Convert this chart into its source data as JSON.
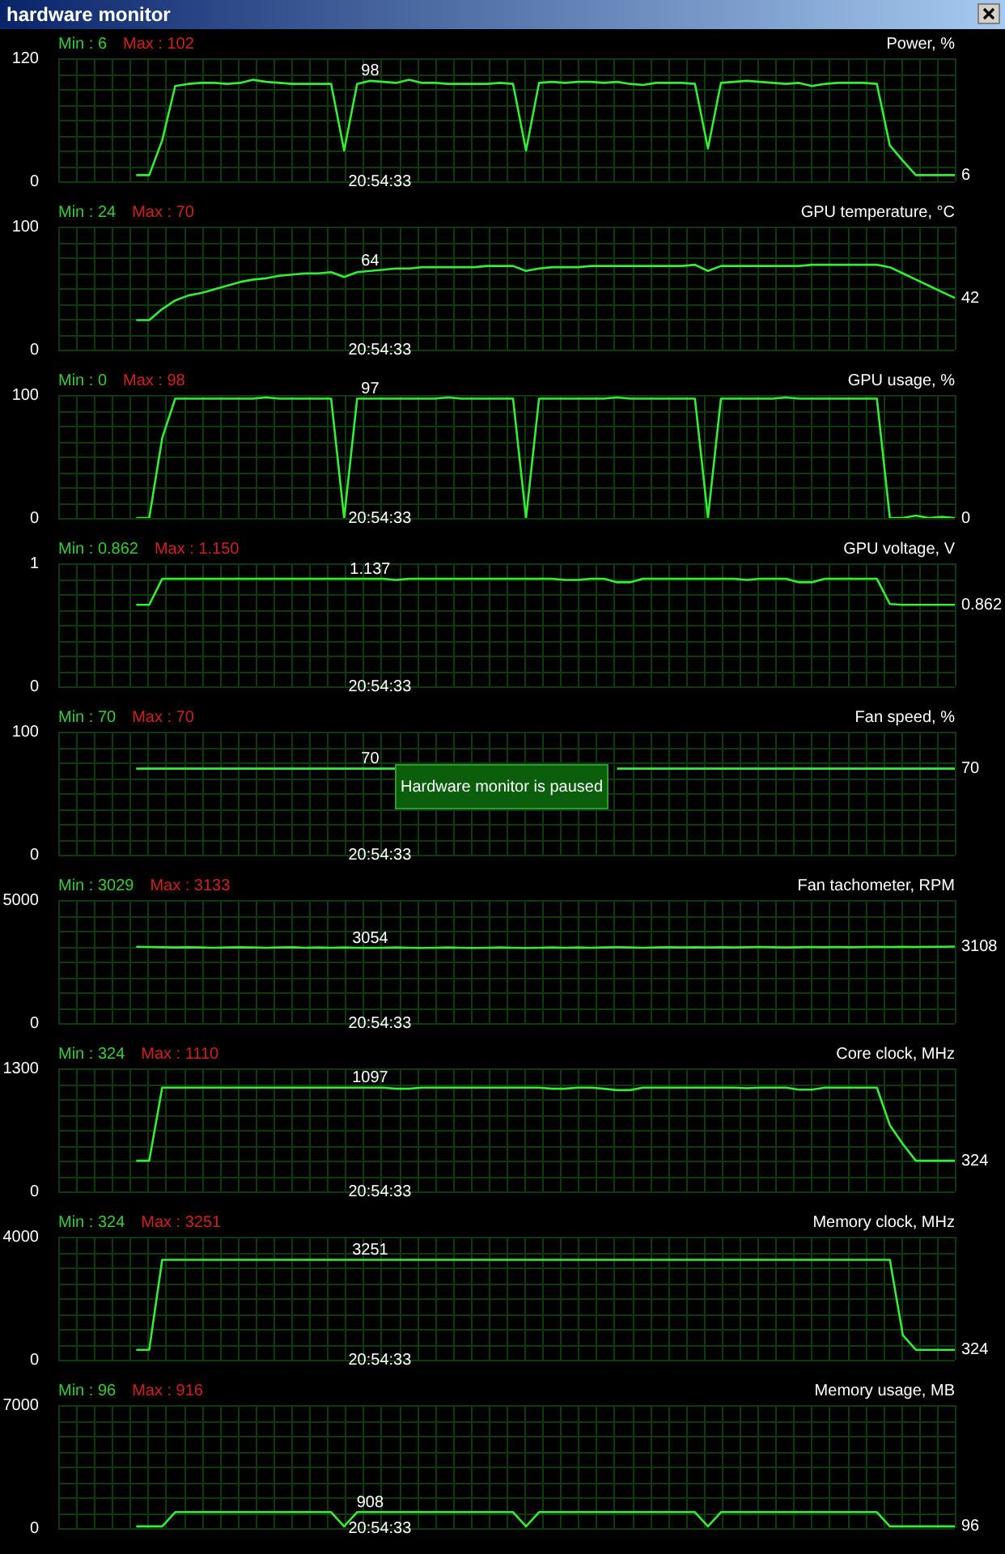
{
  "chart_data": [
    {
      "type": "line",
      "title": "Power, %",
      "categories": [
        null,
        null,
        null,
        null,
        null,
        null,
        null,
        null,
        null,
        null,
        null,
        null,
        null,
        null,
        null,
        null,
        null,
        null,
        null,
        null,
        null,
        null,
        null,
        null,
        null,
        null,
        null,
        null,
        null,
        null,
        null,
        null,
        null,
        null,
        null,
        null,
        null,
        null,
        null,
        null,
        null,
        null,
        null,
        null,
        null,
        null,
        null,
        null,
        null,
        null,
        null,
        null,
        null,
        null,
        null,
        null,
        null,
        null,
        null,
        null,
        null,
        null,
        null,
        null,
        null,
        null,
        null,
        null,
        null,
        null
      ],
      "color": "#33ee33",
      "ylim": [
        0,
        120
      ],
      "yticks": [
        0,
        120
      ],
      "grid": true,
      "tick_labels": "y",
      "values": [
        null,
        null,
        null,
        null,
        null,
        null,
        6,
        6,
        40,
        93,
        95,
        96,
        96,
        95,
        96,
        99,
        97,
        96,
        95,
        95,
        95,
        95,
        30,
        95,
        98,
        97,
        96,
        99,
        96,
        96,
        95,
        95,
        95,
        95,
        96,
        95,
        30,
        96,
        97,
        96,
        97,
        97,
        96,
        97,
        95,
        94,
        96,
        96,
        96,
        95,
        32,
        96,
        97,
        98,
        97,
        96,
        95,
        96,
        93,
        95,
        96,
        96,
        96,
        95,
        35,
        20,
        6,
        6,
        6,
        6
      ],
      "annotations": [
        "Min : 6",
        "Max : 102",
        "20:54:33",
        "6",
        "hardware monitor",
        {
          "text": "98",
          "y": 98
        }
      ]
    },
    {
      "type": "line",
      "title": "GPU temperature, °C",
      "categories": [
        null,
        null,
        null,
        null,
        null,
        null,
        null,
        null,
        null,
        null,
        null,
        null,
        null,
        null,
        null,
        null,
        null,
        null,
        null,
        null,
        null,
        null,
        null,
        null,
        null,
        null,
        null,
        null,
        null,
        null,
        null,
        null,
        null,
        null,
        null,
        null,
        null,
        null,
        null,
        null,
        null,
        null,
        null,
        null,
        null,
        null,
        null,
        null,
        null,
        null,
        null,
        null,
        null,
        null,
        null,
        null,
        null,
        null,
        null,
        null,
        null,
        null,
        null,
        null,
        null,
        null,
        null,
        null,
        null,
        null
      ],
      "color": "#33ee33",
      "ylim": [
        0,
        100
      ],
      "yticks": [
        0,
        100
      ],
      "grid": true,
      "tick_labels": "y",
      "values": [
        null,
        null,
        null,
        null,
        null,
        null,
        24,
        24,
        33,
        40,
        44,
        46,
        49,
        52,
        55,
        57,
        58,
        60,
        61,
        62,
        62,
        63,
        59,
        63,
        64,
        65,
        66,
        66,
        67,
        67,
        67,
        67,
        67,
        68,
        68,
        68,
        64,
        66,
        67,
        67,
        67,
        68,
        68,
        68,
        68,
        68,
        68,
        68,
        68,
        69,
        64,
        68,
        68,
        68,
        68,
        68,
        68,
        68,
        69,
        69,
        69,
        69,
        69,
        69,
        67,
        62,
        57,
        52,
        47,
        42
      ],
      "annotations": [
        "Min : 24",
        "Max : 70",
        "20:54:33",
        "42",
        {
          "text": "64",
          "y": 64
        }
      ]
    },
    {
      "type": "line",
      "title": "GPU usage, %",
      "categories": [
        null,
        null,
        null,
        null,
        null,
        null,
        null,
        null,
        null,
        null,
        null,
        null,
        null,
        null,
        null,
        null,
        null,
        null,
        null,
        null,
        null,
        null,
        null,
        null,
        null,
        null,
        null,
        null,
        null,
        null,
        null,
        null,
        null,
        null,
        null,
        null,
        null,
        null,
        null,
        null,
        null,
        null,
        null,
        null,
        null,
        null,
        null,
        null,
        null,
        null,
        null,
        null,
        null,
        null,
        null,
        null,
        null,
        null,
        null,
        null,
        null,
        null,
        null,
        null,
        null,
        null,
        null,
        null,
        null,
        null
      ],
      "color": "#33ee33",
      "ylim": [
        0,
        100
      ],
      "yticks": [
        0,
        100
      ],
      "grid": true,
      "tick_labels": "y",
      "values": [
        null,
        null,
        null,
        null,
        null,
        null,
        0,
        0,
        65,
        97,
        97,
        97,
        97,
        97,
        97,
        97,
        98,
        97,
        97,
        97,
        97,
        97,
        0,
        97,
        97,
        97,
        97,
        97,
        97,
        97,
        98,
        97,
        97,
        97,
        97,
        97,
        0,
        97,
        97,
        97,
        97,
        97,
        97,
        98,
        97,
        97,
        97,
        97,
        97,
        97,
        0,
        97,
        97,
        97,
        97,
        97,
        98,
        97,
        97,
        97,
        97,
        97,
        97,
        97,
        0,
        0,
        2,
        0,
        1,
        0
      ],
      "annotations": [
        "Min : 0",
        "Max : 98",
        "20:54:33",
        "0",
        {
          "text": "97",
          "y": 97
        }
      ]
    },
    {
      "type": "line",
      "title": "GPU voltage, V",
      "categories": [
        null,
        null,
        null,
        null,
        null,
        null,
        null,
        null,
        null,
        null,
        null,
        null,
        null,
        null,
        null,
        null,
        null,
        null,
        null,
        null,
        null,
        null,
        null,
        null,
        null,
        null,
        null,
        null,
        null,
        null,
        null,
        null,
        null,
        null,
        null,
        null,
        null,
        null,
        null,
        null,
        null,
        null,
        null,
        null,
        null,
        null,
        null,
        null,
        null,
        null,
        null,
        null,
        null,
        null,
        null,
        null,
        null,
        null,
        null,
        null,
        null,
        null,
        null,
        null,
        null,
        null,
        null,
        null,
        null,
        null
      ],
      "color": "#33ee33",
      "ylim": [
        0,
        1.3
      ],
      "yticks": [
        0,
        {
          "value": 1.3,
          "label": "1"
        }
      ],
      "grid": true,
      "tick_labels": "y",
      "values": [
        null,
        null,
        null,
        null,
        null,
        null,
        0.862,
        0.862,
        1.137,
        1.137,
        1.137,
        1.137,
        1.137,
        1.137,
        1.137,
        1.137,
        1.137,
        1.137,
        1.137,
        1.137,
        1.137,
        1.137,
        1.137,
        1.137,
        1.137,
        1.137,
        1.125,
        1.137,
        1.137,
        1.137,
        1.137,
        1.137,
        1.137,
        1.137,
        1.137,
        1.137,
        1.137,
        1.137,
        1.137,
        1.125,
        1.125,
        1.137,
        1.137,
        1.1,
        1.1,
        1.137,
        1.137,
        1.137,
        1.137,
        1.137,
        1.137,
        1.137,
        1.137,
        1.125,
        1.137,
        1.137,
        1.137,
        1.1,
        1.1,
        1.137,
        1.137,
        1.137,
        1.137,
        1.137,
        0.87,
        0.862,
        0.862,
        0.862,
        0.862,
        0.862
      ],
      "annotations": [
        "Min : 0.862",
        "Max : 1.150",
        "20:54:33",
        "0.862",
        {
          "text": "1.137",
          "y": 1.137
        }
      ]
    },
    {
      "type": "line",
      "title": "Fan speed, %",
      "categories": [
        null,
        null,
        null,
        null,
        null,
        null,
        null,
        null,
        null,
        null,
        null,
        null,
        null,
        null,
        null,
        null,
        null,
        null,
        null,
        null,
        null,
        null,
        null,
        null,
        null,
        null,
        null,
        null,
        null,
        null,
        null,
        null,
        null,
        null,
        null,
        null,
        null,
        null,
        null,
        null,
        null,
        null,
        null,
        null,
        null,
        null,
        null,
        null,
        null,
        null,
        null,
        null,
        null,
        null,
        null,
        null,
        null,
        null,
        null,
        null,
        null,
        null,
        null,
        null,
        null,
        null,
        null,
        null,
        null,
        null
      ],
      "color": "#33ee33",
      "ylim": [
        0,
        100
      ],
      "yticks": [
        0,
        100
      ],
      "grid": true,
      "tick_labels": "y",
      "values": [
        null,
        null,
        null,
        null,
        null,
        null,
        70,
        70,
        70,
        70,
        70,
        70,
        70,
        70,
        70,
        70,
        70,
        70,
        70,
        70,
        70,
        70,
        70,
        70,
        70,
        70,
        70,
        null,
        null,
        null,
        null,
        null,
        null,
        null,
        null,
        null,
        null,
        null,
        null,
        null,
        null,
        null,
        null,
        70,
        70,
        70,
        70,
        70,
        70,
        70,
        70,
        70,
        70,
        70,
        70,
        70,
        70,
        70,
        70,
        70,
        70,
        70,
        70,
        70,
        70,
        70,
        70,
        70,
        70,
        70
      ],
      "annotations": [
        "Min : 70",
        "Max : 70",
        "20:54:33",
        "70",
        "Hardware monitor is paused",
        "70"
      ]
    },
    {
      "type": "line",
      "title": "Fan tachometer, RPM",
      "categories": [
        null,
        null,
        null,
        null,
        null,
        null,
        null,
        null,
        null,
        null,
        null,
        null,
        null,
        null,
        null,
        null,
        null,
        null,
        null,
        null,
        null,
        null,
        null,
        null,
        null,
        null,
        null,
        null,
        null,
        null,
        null,
        null,
        null,
        null,
        null,
        null,
        null,
        null,
        null,
        null,
        null,
        null,
        null,
        null,
        null,
        null,
        null,
        null,
        null,
        null,
        null,
        null,
        null,
        null,
        null,
        null,
        null,
        null,
        null,
        null,
        null,
        null,
        null,
        null,
        null,
        null,
        null,
        null,
        null,
        null
      ],
      "color": "#33ee33",
      "ylim": [
        0,
        5000
      ],
      "yticks": [
        0,
        5000
      ],
      "grid": true,
      "tick_labels": "y",
      "values": [
        null,
        null,
        null,
        null,
        null,
        null,
        3100,
        3090,
        3080,
        3070,
        3080,
        3070,
        3060,
        3070,
        3080,
        3070,
        3060,
        3070,
        3080,
        3060,
        3070,
        3060,
        3070,
        3060,
        3054,
        3060,
        3070,
        3060,
        3050,
        3060,
        3070,
        3060,
        3050,
        3060,
        3070,
        3060,
        3050,
        3060,
        3070,
        3060,
        3070,
        3060,
        3070,
        3080,
        3070,
        3060,
        3070,
        3080,
        3070,
        3080,
        3070,
        3080,
        3070,
        3080,
        3090,
        3080,
        3070,
        3080,
        3090,
        3080,
        3090,
        3080,
        3090,
        3100,
        3090,
        3100,
        3090,
        3100,
        3100,
        3108
      ],
      "annotations": [
        "Min : 3029",
        "Max : 3133",
        "20:54:33",
        "3108",
        {
          "text": "3054",
          "y": 3054
        }
      ]
    },
    {
      "type": "line",
      "title": "Core clock, MHz",
      "categories": [
        null,
        null,
        null,
        null,
        null,
        null,
        null,
        null,
        null,
        null,
        null,
        null,
        null,
        null,
        null,
        null,
        null,
        null,
        null,
        null,
        null,
        null,
        null,
        null,
        null,
        null,
        null,
        null,
        null,
        null,
        null,
        null,
        null,
        null,
        null,
        null,
        null,
        null,
        null,
        null,
        null,
        null,
        null,
        null,
        null,
        null,
        null,
        null,
        null,
        null,
        null,
        null,
        null,
        null,
        null,
        null,
        null,
        null,
        null,
        null,
        null,
        null,
        null,
        null,
        null,
        null,
        null,
        null,
        null,
        null
      ],
      "color": "#33ee33",
      "ylim": [
        0,
        1300
      ],
      "yticks": [
        0,
        1300
      ],
      "grid": true,
      "tick_labels": "y",
      "values": [
        null,
        null,
        null,
        null,
        null,
        null,
        324,
        324,
        1097,
        1097,
        1097,
        1097,
        1097,
        1097,
        1097,
        1097,
        1097,
        1097,
        1097,
        1097,
        1097,
        1097,
        1097,
        1097,
        1097,
        1097,
        1085,
        1085,
        1097,
        1097,
        1097,
        1097,
        1097,
        1097,
        1097,
        1097,
        1097,
        1097,
        1085,
        1085,
        1097,
        1097,
        1085,
        1070,
        1070,
        1097,
        1097,
        1097,
        1097,
        1097,
        1097,
        1097,
        1097,
        1090,
        1097,
        1097,
        1097,
        1075,
        1075,
        1097,
        1097,
        1097,
        1097,
        1097,
        700,
        500,
        324,
        324,
        324,
        324
      ],
      "annotations": [
        "Min : 324",
        "Max : 1110",
        "20:54:33",
        "324",
        {
          "text": "1097",
          "y": 1097
        }
      ]
    },
    {
      "type": "line",
      "title": "Memory clock, MHz",
      "categories": [
        null,
        null,
        null,
        null,
        null,
        null,
        null,
        null,
        null,
        null,
        null,
        null,
        null,
        null,
        null,
        null,
        null,
        null,
        null,
        null,
        null,
        null,
        null,
        null,
        null,
        null,
        null,
        null,
        null,
        null,
        null,
        null,
        null,
        null,
        null,
        null,
        null,
        null,
        null,
        null,
        null,
        null,
        null,
        null,
        null,
        null,
        null,
        null,
        null,
        null,
        null,
        null,
        null,
        null,
        null,
        null,
        null,
        null,
        null,
        null,
        null,
        null,
        null,
        null,
        null,
        null,
        null,
        null,
        null,
        null
      ],
      "color": "#33ee33",
      "ylim": [
        0,
        4000
      ],
      "yticks": [
        0,
        4000
      ],
      "grid": true,
      "tick_labels": "y",
      "values": [
        null,
        null,
        null,
        null,
        null,
        null,
        324,
        324,
        3251,
        3251,
        3251,
        3251,
        3251,
        3251,
        3251,
        3251,
        3251,
        3251,
        3251,
        3251,
        3251,
        3251,
        3251,
        3251,
        3251,
        3251,
        3251,
        3251,
        3251,
        3251,
        3251,
        3251,
        3251,
        3251,
        3251,
        3251,
        3251,
        3251,
        3251,
        3251,
        3251,
        3251,
        3251,
        3251,
        3251,
        3251,
        3251,
        3251,
        3251,
        3251,
        3251,
        3251,
        3251,
        3251,
        3251,
        3251,
        3251,
        3251,
        3251,
        3251,
        3251,
        3251,
        3251,
        3251,
        3251,
        800,
        324,
        324,
        324,
        324
      ],
      "annotations": [
        "Min : 324",
        "Max : 3251",
        "20:54:33",
        "324",
        {
          "text": "3251",
          "y": 3251
        }
      ]
    },
    {
      "type": "line",
      "title": "Memory usage, MB",
      "categories": [
        null,
        null,
        null,
        null,
        null,
        null,
        null,
        null,
        null,
        null,
        null,
        null,
        null,
        null,
        null,
        null,
        null,
        null,
        null,
        null,
        null,
        null,
        null,
        null,
        null,
        null,
        null,
        null,
        null,
        null,
        null,
        null,
        null,
        null,
        null,
        null,
        null,
        null,
        null,
        null,
        null,
        null,
        null,
        null,
        null,
        null,
        null,
        null,
        null,
        null,
        null,
        null,
        null,
        null,
        null,
        null,
        null,
        null,
        null,
        null,
        null,
        null,
        null,
        null,
        null,
        null,
        null,
        null,
        null,
        null
      ],
      "color": "#33ee33",
      "ylim": [
        0,
        7000
      ],
      "yticks": [
        0,
        7000
      ],
      "grid": true,
      "tick_labels": "y",
      "values": [
        null,
        null,
        null,
        null,
        null,
        null,
        96,
        96,
        96,
        908,
        908,
        908,
        908,
        908,
        908,
        908,
        908,
        908,
        908,
        908,
        908,
        908,
        96,
        908,
        908,
        908,
        908,
        908,
        908,
        908,
        908,
        908,
        908,
        908,
        908,
        908,
        96,
        908,
        908,
        908,
        908,
        908,
        908,
        908,
        908,
        908,
        908,
        908,
        908,
        908,
        96,
        908,
        908,
        908,
        908,
        908,
        908,
        908,
        908,
        908,
        908,
        908,
        908,
        908,
        96,
        96,
        96,
        96,
        96,
        96
      ],
      "annotations": [
        "Min : 96",
        "Max : 916",
        "20:54:33",
        "96",
        {
          "text": "908",
          "y": 908
        }
      ]
    }
  ]
}
